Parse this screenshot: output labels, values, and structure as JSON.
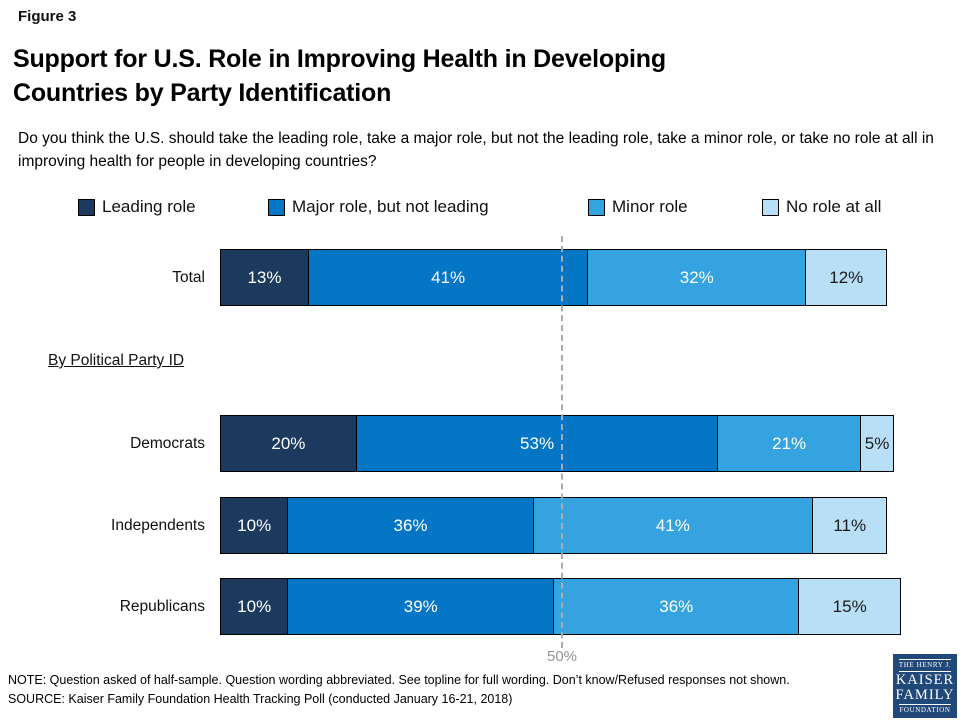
{
  "figure_label": "Figure 3",
  "title": {
    "line1": "Support for U.S. Role in Improving Health in Developing",
    "line2": "Countries by Party Identification"
  },
  "subtitle": "Do you think the U.S. should take the leading role, take a major role, but not the leading role, take a minor role, or take no role at all in improving health for people in developing countries?",
  "section_label": "By Political Party ID",
  "chart_data": {
    "type": "bar",
    "orientation": "horizontal",
    "stacked": true,
    "categories": [
      "Total",
      "Democrats",
      "Independents",
      "Republicans"
    ],
    "series": [
      {
        "name": "Leading role",
        "color": "#1C3A5E",
        "text_color": "#FFFFFF",
        "values": [
          13,
          20,
          10,
          10
        ]
      },
      {
        "name": "Major role, but not leading",
        "color": "#0576C5",
        "text_color": "#FFFFFF",
        "values": [
          41,
          53,
          36,
          39
        ]
      },
      {
        "name": "Minor role",
        "color": "#35A3E0",
        "text_color": "#FFFFFF",
        "values": [
          32,
          21,
          41,
          36
        ]
      },
      {
        "name": "No role at all",
        "color": "#B9DFF6",
        "text_color": "#1A1A1A",
        "values": [
          12,
          5,
          11,
          15
        ]
      }
    ],
    "value_suffix": "%",
    "xlim": [
      0,
      100
    ],
    "legend_position": "top",
    "grid": false,
    "reference_line": {
      "value": 50,
      "label": "50%"
    }
  },
  "footer": {
    "note": "NOTE: Question asked of half-sample. Question wording abbreviated. See topline for full wording. Don’t know/Refused responses not shown.",
    "source": "SOURCE: Kaiser Family Foundation Health Tracking Poll (conducted January 16-21, 2018)"
  },
  "logo": {
    "line1": "THE HENRY J.",
    "line2": "KAISER",
    "line3": "FAMILY",
    "line4": "FOUNDATION",
    "bg_color": "#204878"
  }
}
